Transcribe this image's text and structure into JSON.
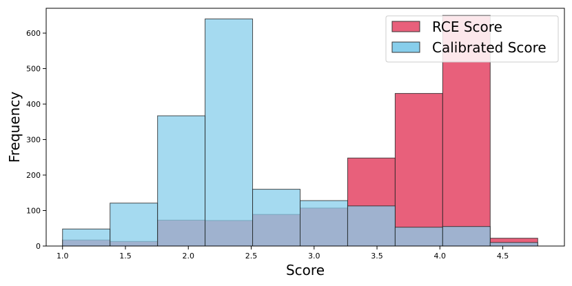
{
  "chart_data": {
    "type": "bar",
    "xlabel": "Score",
    "ylabel": "Frequency",
    "xlim": [
      0.87,
      4.99
    ],
    "ylim": [
      0,
      670
    ],
    "xticks": [
      1.0,
      1.5,
      2.0,
      2.5,
      3.0,
      3.5,
      4.0,
      4.5
    ],
    "xtick_labels": [
      "1.0",
      "1.5",
      "2.0",
      "2.5",
      "3.0",
      "3.5",
      "4.0",
      "4.5"
    ],
    "yticks": [
      0,
      100,
      200,
      300,
      400,
      500,
      600
    ],
    "ytick_labels": [
      "0",
      "100",
      "200",
      "300",
      "400",
      "500",
      "600"
    ],
    "bin_edges": [
      1.0,
      1.5,
      2.0,
      2.5,
      3.0,
      3.5,
      4.0,
      4.5,
      5.0
    ],
    "legend_position": "top-right",
    "grid": false,
    "series": [
      {
        "name": "RCE Score",
        "color": "#e8607b",
        "bin_edges": [
          1.0,
          1.3778,
          1.7556,
          2.1333,
          2.5111,
          2.8889,
          3.2667,
          3.6444,
          4.0222,
          4.4,
          4.7778
        ],
        "values": [
          17,
          13,
          73,
          72,
          89,
          107,
          248,
          430,
          650,
          22
        ]
      },
      {
        "name": "Calibrated Score",
        "color": "#87ceeb",
        "bin_edges": [
          1.0,
          1.3778,
          1.7556,
          2.1333,
          2.5111,
          2.8889,
          3.2667,
          3.6444,
          4.0222,
          4.4,
          4.7778
        ],
        "values": [
          48,
          121,
          367,
          640,
          160,
          128,
          113,
          53,
          55,
          10
        ]
      }
    ]
  }
}
